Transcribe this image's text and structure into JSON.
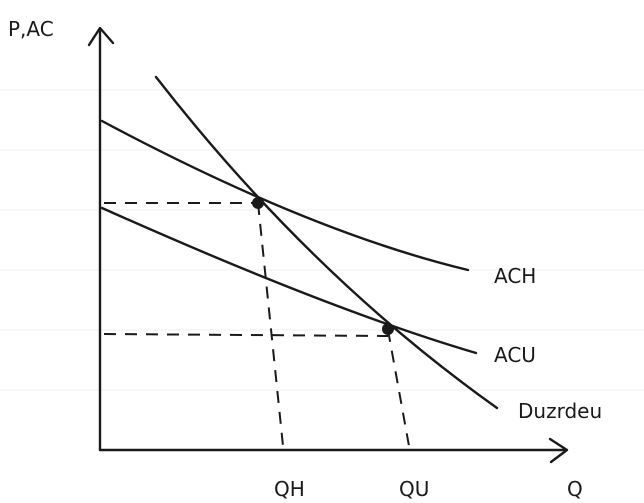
{
  "labels": {
    "y_axis": "P,AC",
    "x_axis": "Q",
    "q_h": "QH",
    "q_u": "QU",
    "ac_h": "ACH",
    "ac_u": "ACU",
    "demand": "Duzrdeu"
  },
  "colors": {
    "ink": "#1a1a1a",
    "paper": "#ffffff",
    "ruled_line": "#eef0f2"
  }
}
